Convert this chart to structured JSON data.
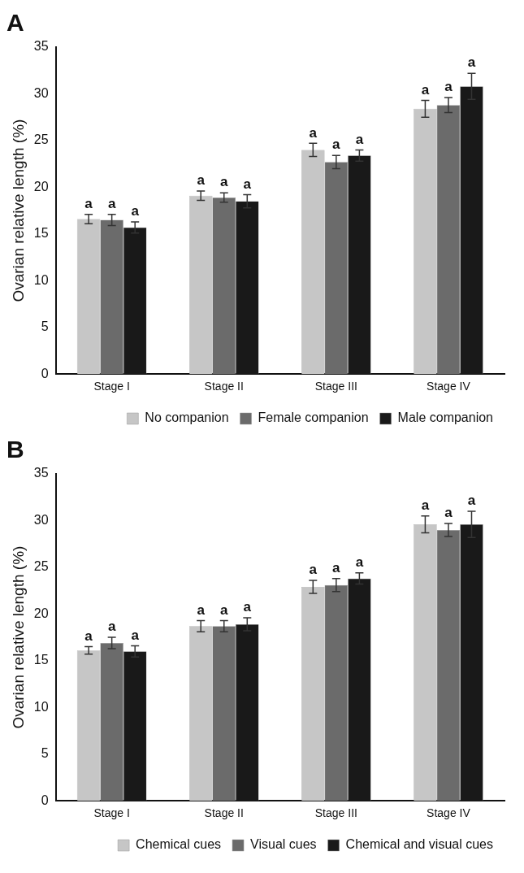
{
  "chart_data": [
    {
      "type": "bar",
      "title": "A",
      "ylabel": "Ovarian relative length (%)",
      "categories": [
        "Stage I",
        "Stage II",
        "Stage III",
        "Stage IV"
      ],
      "ylim": [
        0,
        35
      ],
      "yticks": [
        0,
        5,
        10,
        15,
        20,
        25,
        30,
        35
      ],
      "grid": false,
      "legend": "bottom",
      "series": [
        {
          "name": "No companion",
          "color": "#c6c6c6",
          "values": [
            16.6,
            19.1,
            24.0,
            28.4
          ],
          "errors": [
            0.5,
            0.5,
            0.7,
            0.9
          ],
          "value_labels": [
            "a",
            "a",
            "a",
            "a"
          ]
        },
        {
          "name": "Female companion",
          "color": "#6b6b6b",
          "values": [
            16.5,
            18.9,
            22.7,
            28.8
          ],
          "errors": [
            0.6,
            0.5,
            0.7,
            0.8
          ],
          "value_labels": [
            "a",
            "a",
            "a",
            "a"
          ]
        },
        {
          "name": "Male companion",
          "color": "#191919",
          "values": [
            15.7,
            18.5,
            23.4,
            30.8
          ],
          "errors": [
            0.6,
            0.7,
            0.6,
            1.4
          ],
          "value_labels": [
            "a",
            "a",
            "a",
            "a"
          ]
        }
      ]
    },
    {
      "type": "bar",
      "title": "B",
      "ylabel": "Ovarian relative length (%)",
      "categories": [
        "Stage I",
        "Stage II",
        "Stage III",
        "Stage IV"
      ],
      "ylim": [
        0,
        35
      ],
      "yticks": [
        0,
        5,
        10,
        15,
        20,
        25,
        30,
        35
      ],
      "grid": false,
      "legend": "bottom",
      "series": [
        {
          "name": "Chemical cues",
          "color": "#c6c6c6",
          "values": [
            16.1,
            18.7,
            22.9,
            29.6
          ],
          "errors": [
            0.4,
            0.6,
            0.7,
            0.9
          ],
          "value_labels": [
            "a",
            "a",
            "a",
            "a"
          ]
        },
        {
          "name": "Visual cues",
          "color": "#6b6b6b",
          "values": [
            16.9,
            18.7,
            23.1,
            29.0
          ],
          "errors": [
            0.6,
            0.6,
            0.7,
            0.7
          ],
          "value_labels": [
            "a",
            "a",
            "a",
            "a"
          ]
        },
        {
          "name": "Chemical and visual cues",
          "color": "#191919",
          "values": [
            16.0,
            18.9,
            23.8,
            29.6
          ],
          "errors": [
            0.6,
            0.7,
            0.6,
            1.4
          ],
          "value_labels": [
            "a",
            "a",
            "a",
            "a"
          ]
        }
      ]
    }
  ]
}
